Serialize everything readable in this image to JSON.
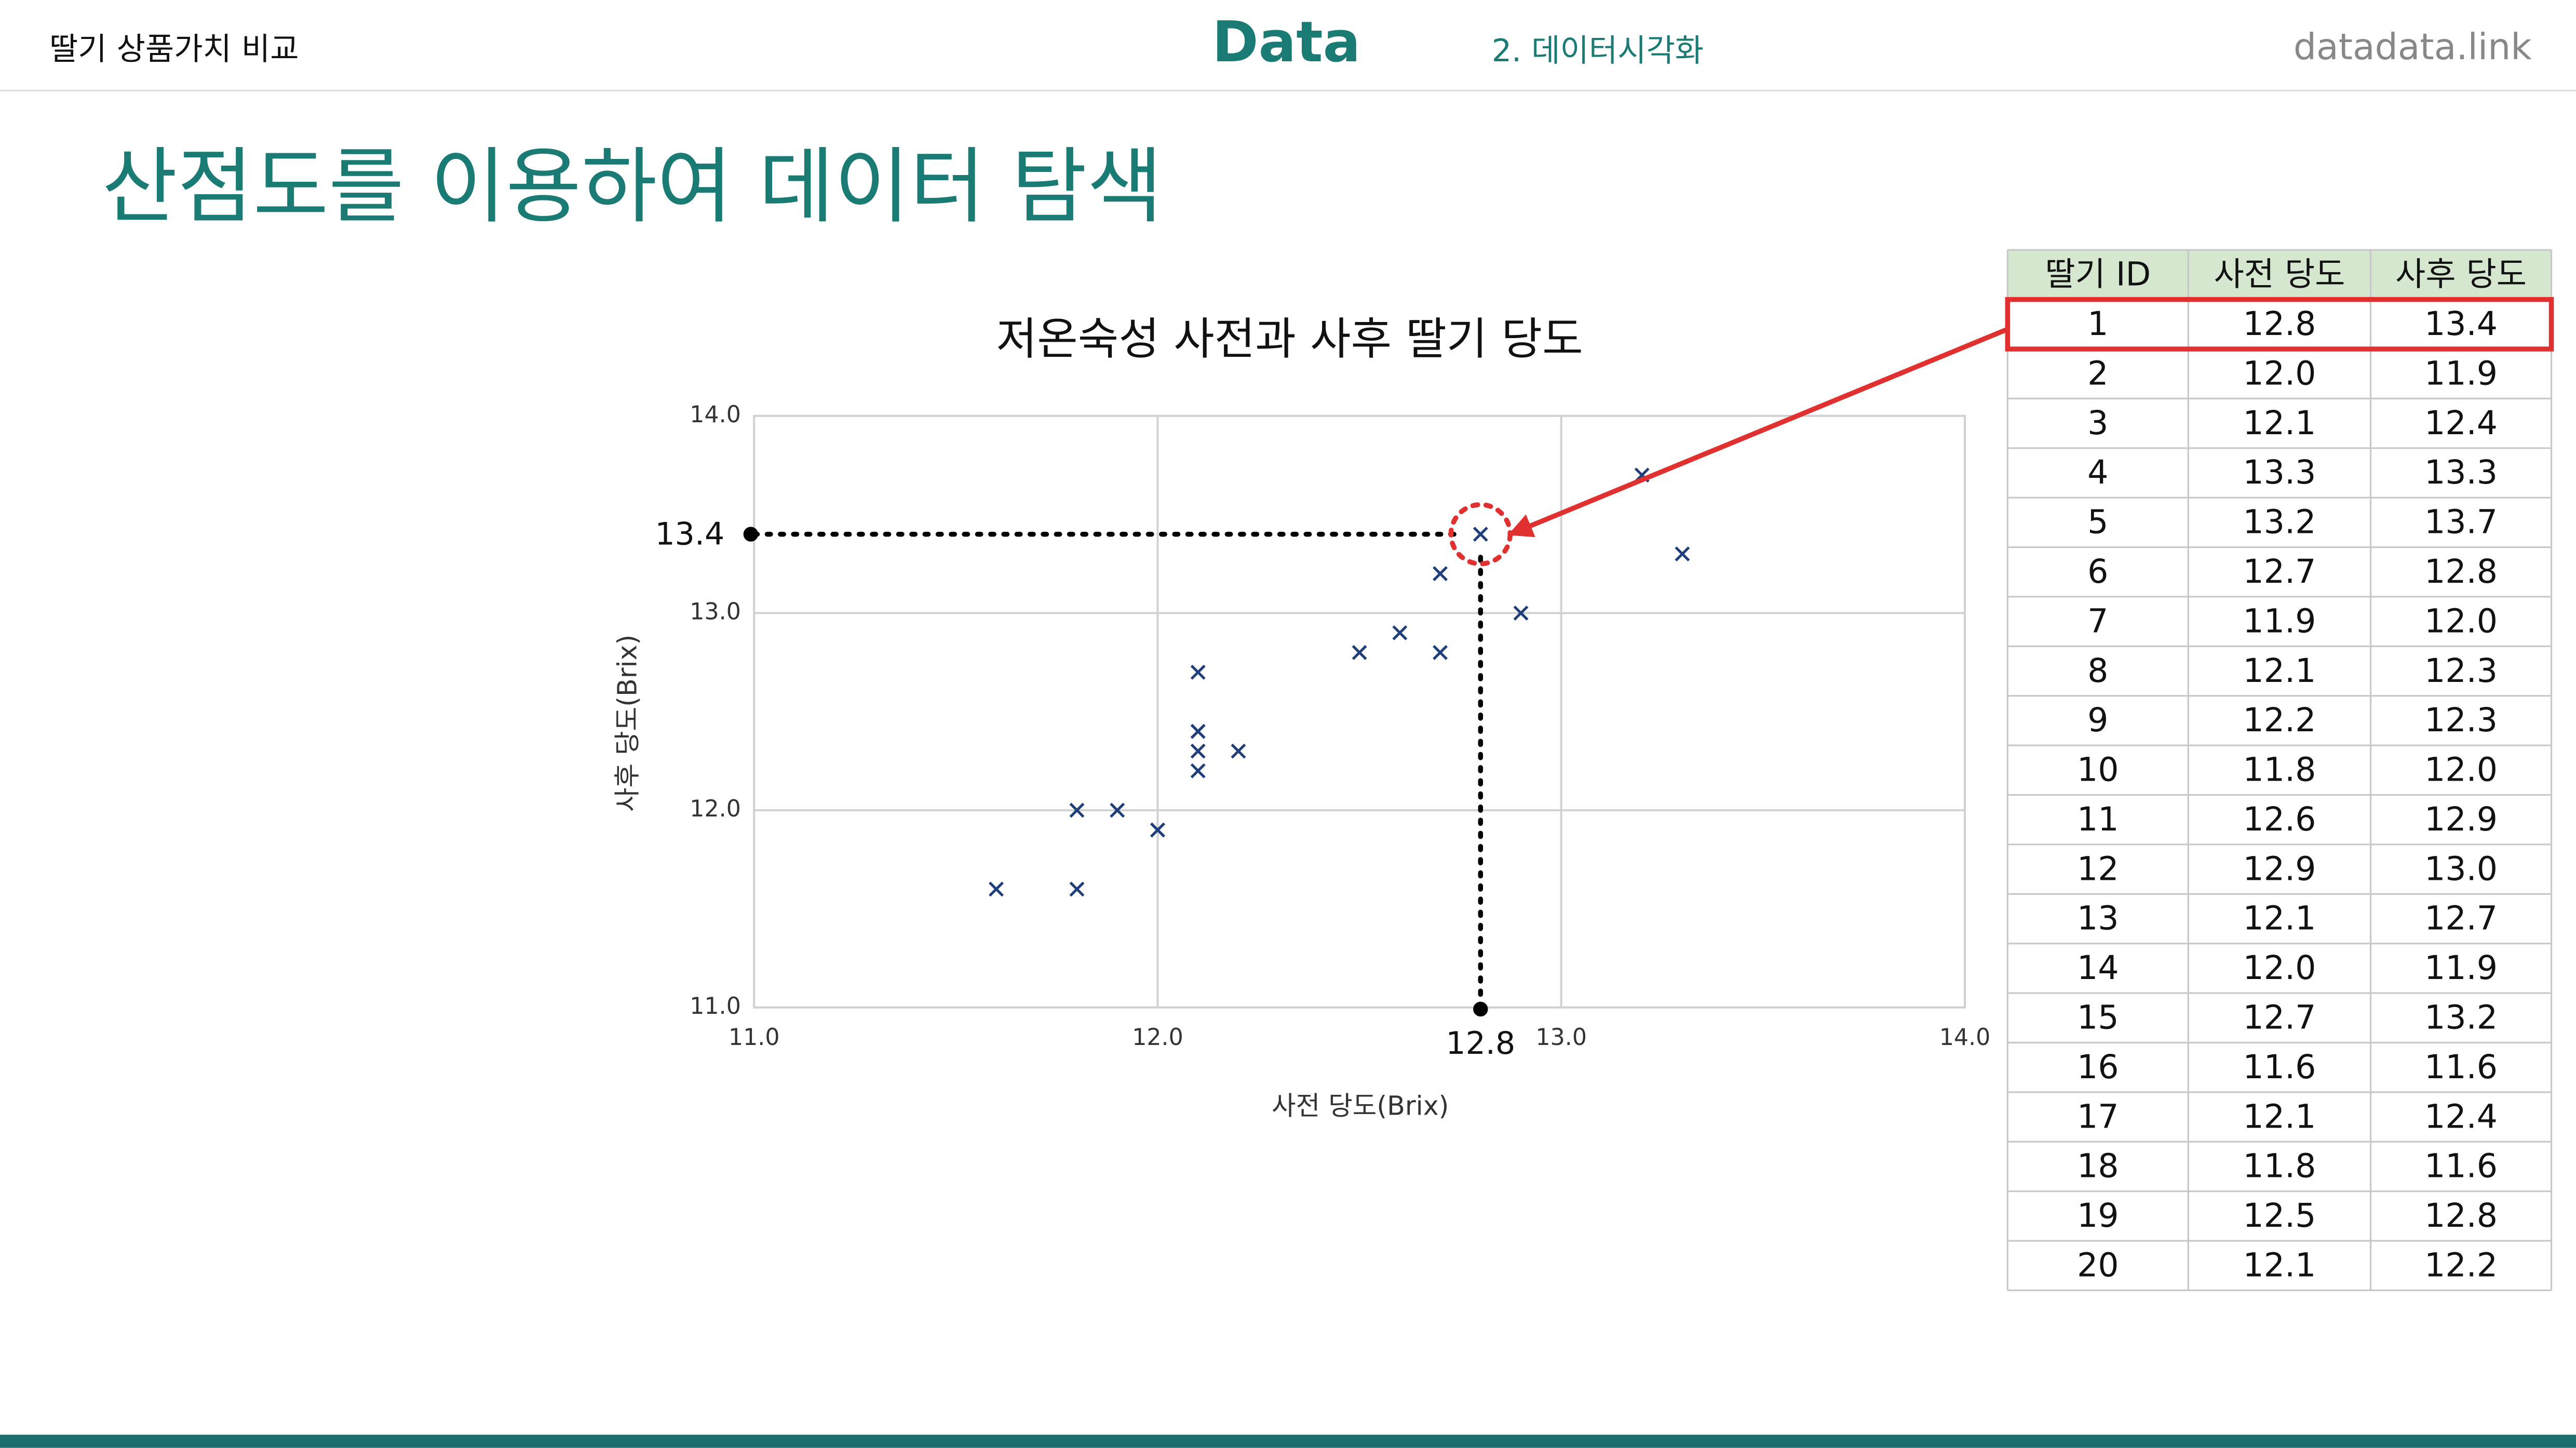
{
  "header": {
    "left": "딸기 상품가치 비교",
    "logo": "Data",
    "section": "2. 데이터시각화",
    "site": "datadata.link"
  },
  "title": "산점도를 이용하여 데이터 탐색",
  "chart_data": {
    "type": "scatter",
    "title": "저온숙성 사전과 사후 딸기 당도",
    "x_label": "사전 당도(Brix)",
    "y_label": "사후 당도(Brix)",
    "x": [
      12.8,
      12.0,
      12.1,
      13.3,
      13.2,
      12.7,
      11.9,
      12.1,
      12.2,
      11.8,
      12.6,
      12.9,
      12.1,
      12.0,
      12.7,
      11.6,
      12.1,
      11.8,
      12.5,
      12.1
    ],
    "values": [
      13.4,
      11.9,
      12.4,
      13.3,
      13.7,
      12.8,
      12.0,
      12.3,
      12.3,
      12.0,
      12.9,
      13.0,
      12.7,
      11.9,
      13.2,
      11.6,
      12.4,
      11.6,
      12.8,
      12.2
    ],
    "color": "#1f3e7a",
    "grid": true,
    "xlim": [
      11,
      14
    ],
    "xticks": [
      {
        "value": 11,
        "label": "11.0"
      },
      {
        "value": 12,
        "label": "12.0"
      },
      {
        "value": 13,
        "label": "13.0"
      },
      {
        "value": 14,
        "label": "14.0"
      }
    ],
    "ylim": [
      11,
      14
    ],
    "yticks": [
      {
        "value": 11,
        "label": "11.0"
      },
      {
        "value": 12,
        "label": "12.0"
      },
      {
        "value": 13,
        "label": "13.0"
      },
      {
        "value": 14,
        "label": "14.0"
      }
    ],
    "highlight": {
      "x": 12.8,
      "y": 13.4
    }
  },
  "table": {
    "header": [
      "딸기 ID",
      "사전 당도",
      "사후 당도"
    ],
    "rows": [
      [
        "1",
        "12.8",
        "13.4"
      ],
      [
        "2",
        "12.0",
        "11.9"
      ],
      [
        "3",
        "12.1",
        "12.4"
      ],
      [
        "4",
        "13.3",
        "13.3"
      ],
      [
        "5",
        "13.2",
        "13.7"
      ],
      [
        "6",
        "12.7",
        "12.8"
      ],
      [
        "7",
        "11.9",
        "12.0"
      ],
      [
        "8",
        "12.1",
        "12.3"
      ],
      [
        "9",
        "12.2",
        "12.3"
      ],
      [
        "10",
        "11.8",
        "12.0"
      ],
      [
        "11",
        "12.6",
        "12.9"
      ],
      [
        "12",
        "12.9",
        "13.0"
      ],
      [
        "13",
        "12.1",
        "12.7"
      ],
      [
        "14",
        "12.0",
        "11.9"
      ],
      [
        "15",
        "12.7",
        "13.2"
      ],
      [
        "16",
        "11.6",
        "11.6"
      ],
      [
        "17",
        "12.1",
        "12.4"
      ],
      [
        "18",
        "11.8",
        "11.6"
      ],
      [
        "19",
        "12.5",
        "12.8"
      ],
      [
        "20",
        "12.1",
        "12.2"
      ]
    ]
  }
}
